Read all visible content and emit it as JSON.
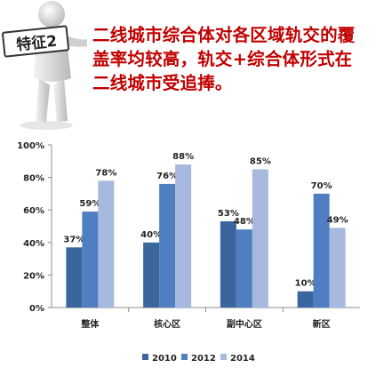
{
  "badge": {
    "label": "特征2"
  },
  "headline": {
    "lines": [
      "二线城市综合体对各区域轨交的覆",
      "盖率均较高，轨交+综合体形式在",
      "二线城市受追捧。"
    ]
  },
  "colors": {
    "headline": "#c00000",
    "s2010": "#3b659d",
    "s2012": "#4f7fc0",
    "s2014": "#a7b9de"
  },
  "chart_data": {
    "type": "bar",
    "categories": [
      "整体",
      "核心区",
      "副中心区",
      "新区"
    ],
    "series": [
      {
        "name": "2010",
        "values": [
          37,
          40,
          53,
          10
        ],
        "labels": [
          "37%",
          "40%",
          "53%",
          "10%"
        ]
      },
      {
        "name": "2012",
        "values": [
          59,
          76,
          48,
          70
        ],
        "labels": [
          "59%",
          "76%",
          "48%",
          "70%"
        ]
      },
      {
        "name": "2014",
        "values": [
          78,
          88,
          85,
          49
        ],
        "labels": [
          "78%",
          "88%",
          "85%",
          "49%"
        ]
      }
    ],
    "ylim": [
      0,
      100
    ],
    "yticks": [
      "0%",
      "20%",
      "40%",
      "60%",
      "80%",
      "100%"
    ],
    "grid": false,
    "legend": "bottom"
  }
}
